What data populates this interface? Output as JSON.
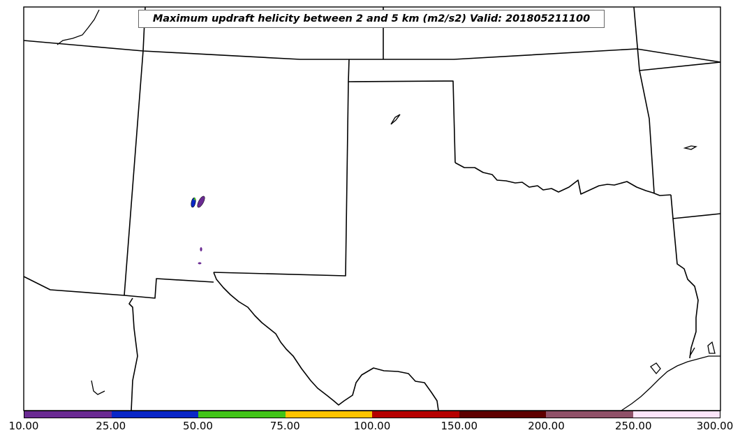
{
  "title": "Maximum updraft helicity between 2 and 5 km (m2/s2) Valid: 201805211100",
  "legend": {
    "ticks": [
      "10.00",
      "25.00",
      "50.00",
      "75.00",
      "100.00",
      "150.00",
      "200.00",
      "250.00",
      "300.00"
    ],
    "colors": [
      "#6a2a92",
      "#0a27c7",
      "#41c418",
      "#fec400",
      "#b50000",
      "#5e0000",
      "#8f5168",
      "#fde5fa"
    ]
  },
  "map": {
    "region": "Southern Plains (New Mexico, Texas, Oklahoma)",
    "features": [
      "state-borders",
      "coastline",
      "helicity-contours"
    ]
  }
}
